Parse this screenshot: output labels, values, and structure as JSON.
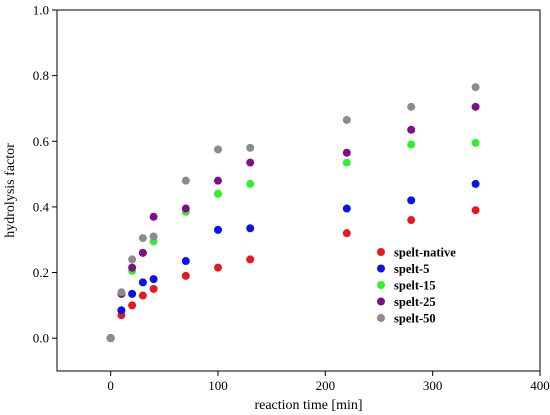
{
  "chart_data": {
    "type": "scatter",
    "xlabel": "reaction time [min]",
    "ylabel": "hydrolysis factor",
    "xlim": [
      -50,
      400
    ],
    "ylim": [
      -0.1,
      1.0
    ],
    "x_ticks": [
      0,
      100,
      200,
      300,
      400
    ],
    "y_ticks": [
      0.0,
      0.2,
      0.4,
      0.6,
      0.8,
      1.0
    ],
    "x_tick_labels": [
      "0",
      "100",
      "200",
      "300",
      "400"
    ],
    "y_tick_labels": [
      "0.0",
      "0.2",
      "0.4",
      "0.6",
      "0.8",
      "1.0"
    ],
    "grid": false,
    "legend_position": "lower-right",
    "series": [
      {
        "name": "spelt-native",
        "color": "#e8191c",
        "points": [
          [
            0,
            0.0
          ],
          [
            10,
            0.07
          ],
          [
            20,
            0.1
          ],
          [
            30,
            0.13
          ],
          [
            40,
            0.15
          ],
          [
            70,
            0.19
          ],
          [
            100,
            0.215
          ],
          [
            130,
            0.24
          ],
          [
            220,
            0.32
          ],
          [
            280,
            0.36
          ],
          [
            340,
            0.39
          ]
        ]
      },
      {
        "name": "spelt-5",
        "color": "#0a14e6",
        "points": [
          [
            0,
            0.0
          ],
          [
            10,
            0.085
          ],
          [
            20,
            0.135
          ],
          [
            30,
            0.17
          ],
          [
            40,
            0.18
          ],
          [
            70,
            0.235
          ],
          [
            100,
            0.33
          ],
          [
            130,
            0.335
          ],
          [
            220,
            0.395
          ],
          [
            280,
            0.42
          ],
          [
            340,
            0.47
          ]
        ]
      },
      {
        "name": "spelt-15",
        "color": "#33f02b",
        "points": [
          [
            0,
            0.0
          ],
          [
            10,
            0.135
          ],
          [
            20,
            0.205
          ],
          [
            30,
            0.26
          ],
          [
            40,
            0.295
          ],
          [
            70,
            0.385
          ],
          [
            100,
            0.44
          ],
          [
            130,
            0.47
          ],
          [
            220,
            0.535
          ],
          [
            280,
            0.59
          ],
          [
            340,
            0.595
          ]
        ]
      },
      {
        "name": "spelt-25",
        "color": "#800e8a",
        "points": [
          [
            0,
            0.0
          ],
          [
            10,
            0.135
          ],
          [
            20,
            0.215
          ],
          [
            30,
            0.26
          ],
          [
            40,
            0.37
          ],
          [
            70,
            0.395
          ],
          [
            100,
            0.48
          ],
          [
            130,
            0.535
          ],
          [
            220,
            0.565
          ],
          [
            280,
            0.635
          ],
          [
            340,
            0.705
          ]
        ]
      },
      {
        "name": "spelt-50",
        "color": "#8c8c8c",
        "points": [
          [
            0,
            0.0
          ],
          [
            10,
            0.14
          ],
          [
            20,
            0.24
          ],
          [
            30,
            0.305
          ],
          [
            40,
            0.31
          ],
          [
            70,
            0.48
          ],
          [
            100,
            0.575
          ],
          [
            130,
            0.58
          ],
          [
            220,
            0.665
          ],
          [
            280,
            0.705
          ],
          [
            340,
            0.765
          ]
        ]
      }
    ]
  }
}
